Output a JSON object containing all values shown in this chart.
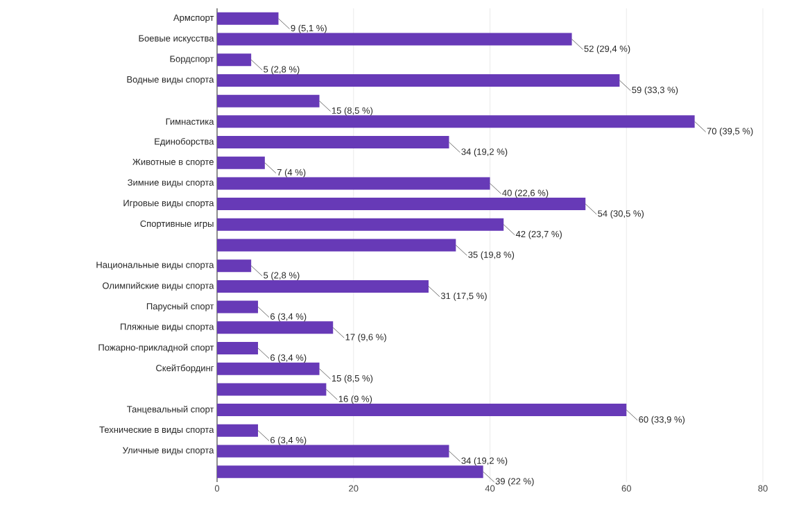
{
  "chart_data": {
    "type": "bar",
    "orientation": "horizontal",
    "color": "#673ab7",
    "grid": "x",
    "categories": [
      "Армспорт",
      "Боевые искусства",
      "Бордспорт",
      "Водные виды спорта",
      null,
      "Гимнастика",
      "Единоборства",
      "Животные в спорте",
      "Зимние виды спорта",
      "Игровые виды спорта",
      "Спортивные игры",
      null,
      "Национальные виды спорта",
      "Олимпийские виды спорта",
      "Парусный спорт",
      "Пляжные виды спорта",
      "Пожарно-прикладной спорт",
      "Скейтбординг",
      null,
      "Танцевальный спорт",
      "Технические в виды спорта",
      "Уличные виды спорта",
      null
    ],
    "values": [
      9,
      52,
      5,
      59,
      15,
      70,
      34,
      7,
      40,
      54,
      42,
      35,
      5,
      31,
      6,
      17,
      6,
      15,
      16,
      60,
      6,
      34,
      39
    ],
    "value_labels": [
      "9 (5,1 %)",
      "52 (29,4 %)",
      "5 (2,8 %)",
      "59 (33,3 %)",
      "15 (8,5 %)",
      "70 (39,5 %)",
      "34 (19,2 %)",
      "7 (4 %)",
      "40 (22,6 %)",
      "54 (30,5 %)",
      "42 (23,7 %)",
      "35 (19,8 %)",
      "5 (2,8 %)",
      "31 (17,5 %)",
      "6 (3,4 %)",
      "17 (9,6 %)",
      "6 (3,4 %)",
      "15 (8,5 %)",
      "16 (9 %)",
      "60 (33,9 %)",
      "6 (3,4 %)",
      "34 (19,2 %)",
      "39 (22 %)"
    ],
    "xlim": [
      0,
      80
    ],
    "xticks": [
      0,
      20,
      40,
      60,
      80
    ]
  }
}
